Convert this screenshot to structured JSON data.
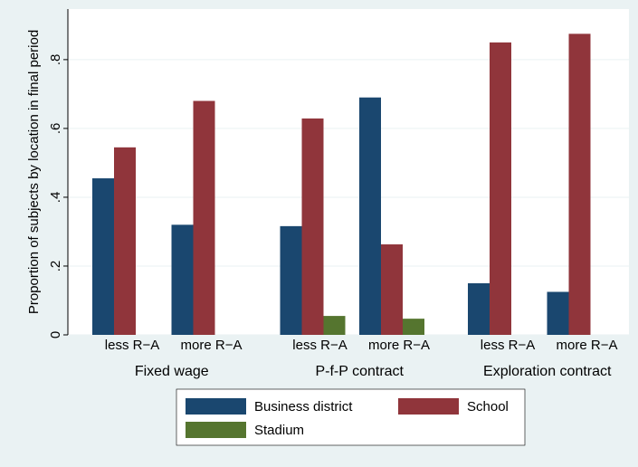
{
  "chart_data": {
    "type": "bar",
    "y_label": "Proportion of subjects by location in final period",
    "categories": [
      "less R−A",
      "more R−A",
      "less R−A",
      "more R−A",
      "less R−A",
      "more R−A"
    ],
    "groups": [
      "Fixed wage",
      "P-f-P contract",
      "Exploration contract"
    ],
    "series": [
      {
        "name": "Business district",
        "color": "#1a476f",
        "values": [
          0.455,
          0.32,
          0.316,
          0.69,
          0.15,
          0.125
        ]
      },
      {
        "name": "School",
        "color": "#90353b",
        "values": [
          0.545,
          0.68,
          0.629,
          0.263,
          0.85,
          0.875
        ]
      },
      {
        "name": "Stadium",
        "color": "#55752f",
        "values": [
          0,
          0,
          0.055,
          0.047,
          0,
          0
        ]
      }
    ],
    "ylim": [
      0,
      0.947
    ],
    "yticks": [
      0,
      {
        "value": 0.2,
        "label": ".2"
      },
      {
        "value": 0.4,
        "label": ".4"
      },
      {
        "value": 0.6,
        "label": ".6"
      },
      {
        "value": 0.8,
        "label": ".8"
      }
    ],
    "grid": true
  }
}
